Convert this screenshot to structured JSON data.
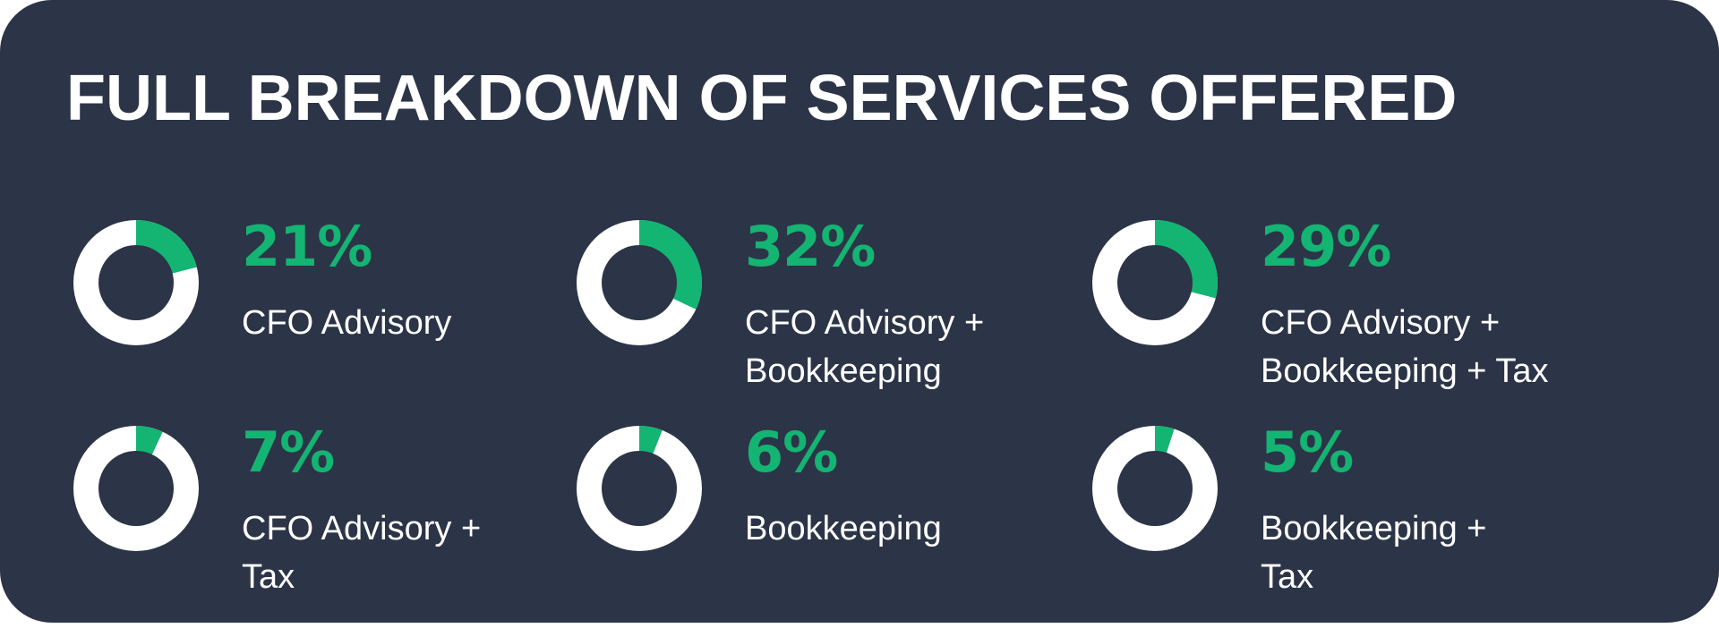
{
  "title": "FULL BREAKDOWN OF SERVICES OFFERED",
  "colors": {
    "background": "#2c3447",
    "accent": "#14b473",
    "ring": "#ffffff"
  },
  "chart_data": {
    "type": "pie",
    "title": "FULL BREAKDOWN OF SERVICES OFFERED",
    "unit": "%",
    "items": [
      {
        "percent_label": "21%",
        "value": 21,
        "label_lines": [
          "CFO Advisory"
        ]
      },
      {
        "percent_label": "32%",
        "value": 32,
        "label_lines": [
          "CFO Advisory +",
          "Bookkeeping"
        ]
      },
      {
        "percent_label": "29%",
        "value": 29,
        "label_lines": [
          "CFO Advisory +",
          "Bookkeeping + Tax"
        ]
      },
      {
        "percent_label": "7%",
        "value": 7,
        "label_lines": [
          "CFO Advisory +",
          "Tax"
        ]
      },
      {
        "percent_label": "6%",
        "value": 6,
        "label_lines": [
          "Bookkeeping"
        ]
      },
      {
        "percent_label": "5%",
        "value": 5,
        "label_lines": [
          "Bookkeeping +",
          "Tax"
        ]
      }
    ]
  }
}
